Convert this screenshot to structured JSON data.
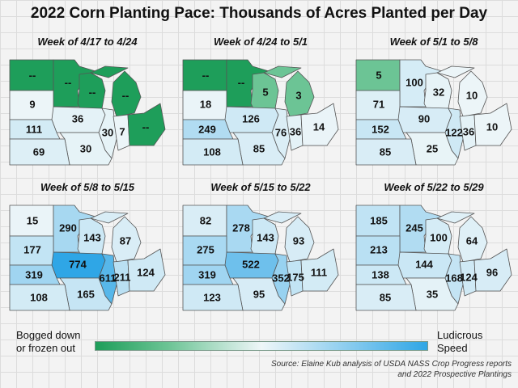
{
  "title": "2022 Corn Planting Pace: Thousands of Acres Planted per Day",
  "legend": {
    "low_label_line1": "Bogged down",
    "low_label_line2": "or frozen out",
    "high_label_line1": "Ludicrous",
    "high_label_line2": "Speed",
    "colors": [
      "#1e9e5a",
      "#6cc495",
      "#eef6f8",
      "#2fa6e6"
    ]
  },
  "source": {
    "line1": "Source: Elaine Kub analysis of USDA NASS Crop Progress reports",
    "line2": "and 2022 Prospective Plantings"
  },
  "state_order": [
    "ND",
    "MN",
    "WI",
    "MI",
    "SD",
    "IA",
    "IL",
    "IN",
    "OH",
    "NE",
    "MO",
    "KS"
  ],
  "weeks": [
    {
      "label": "Week of 4/17 to 4/24",
      "states": {
        "ND": {
          "value": "--",
          "level": "min"
        },
        "MN": {
          "value": "--",
          "level": "min"
        },
        "WI": {
          "value": "--",
          "level": "min"
        },
        "MI": {
          "value": "--",
          "level": "min"
        },
        "SD": {
          "value": "9",
          "level": 0.01
        },
        "IA": {
          "value": "36",
          "level": 0.05
        },
        "IL": {
          "value": "30",
          "level": 0.04
        },
        "IN": {
          "value": "7",
          "level": 0.01
        },
        "OH": {
          "value": "--",
          "level": "min"
        },
        "NE": {
          "value": "111",
          "level": 0.14
        },
        "MO": {
          "value": "30",
          "level": 0.04
        },
        "KS": {
          "value": "69",
          "level": 0.09
        }
      }
    },
    {
      "label": "Week of 4/24 to 5/1",
      "states": {
        "ND": {
          "value": "--",
          "level": "min"
        },
        "MN": {
          "value": "--",
          "level": "min"
        },
        "WI": {
          "value": "5",
          "level": "low"
        },
        "MI": {
          "value": "3",
          "level": "low"
        },
        "SD": {
          "value": "18",
          "level": 0.02
        },
        "IA": {
          "value": "126",
          "level": 0.16
        },
        "IL": {
          "value": "76",
          "level": 0.1
        },
        "IN": {
          "value": "36",
          "level": 0.05
        },
        "OH": {
          "value": "14",
          "level": 0.02
        },
        "NE": {
          "value": "249",
          "level": 0.32
        },
        "MO": {
          "value": "85",
          "level": 0.11
        },
        "KS": {
          "value": "108",
          "level": 0.14
        }
      }
    },
    {
      "label": "Week of 5/1 to 5/8",
      "states": {
        "ND": {
          "value": "5",
          "level": "low"
        },
        "MN": {
          "value": "100",
          "level": 0.13
        },
        "WI": {
          "value": "32",
          "level": 0.04
        },
        "MI": {
          "value": "10",
          "level": 0.01
        },
        "SD": {
          "value": "71",
          "level": 0.09
        },
        "IA": {
          "value": "90",
          "level": 0.12
        },
        "IL": {
          "value": "122",
          "level": 0.16
        },
        "IN": {
          "value": "36",
          "level": 0.05
        },
        "OH": {
          "value": "10",
          "level": 0.01
        },
        "NE": {
          "value": "152",
          "level": 0.2
        },
        "MO": {
          "value": "25",
          "level": 0.03
        },
        "KS": {
          "value": "85",
          "level": 0.11
        }
      }
    },
    {
      "label": "Week of 5/8 to 5/15",
      "states": {
        "ND": {
          "value": "15",
          "level": 0.02
        },
        "MN": {
          "value": "290",
          "level": 0.37
        },
        "WI": {
          "value": "143",
          "level": 0.18
        },
        "MI": {
          "value": "87",
          "level": 0.11
        },
        "SD": {
          "value": "177",
          "level": 0.23
        },
        "IA": {
          "value": "774",
          "level": 1.0
        },
        "IL": {
          "value": "611",
          "level": 0.79
        },
        "IN": {
          "value": "211",
          "level": 0.27
        },
        "OH": {
          "value": "124",
          "level": 0.16
        },
        "NE": {
          "value": "319",
          "level": 0.41
        },
        "MO": {
          "value": "165",
          "level": 0.21
        },
        "KS": {
          "value": "108",
          "level": 0.14
        }
      }
    },
    {
      "label": "Week of 5/15 to 5/22",
      "states": {
        "ND": {
          "value": "82",
          "level": 0.11
        },
        "MN": {
          "value": "278",
          "level": 0.36
        },
        "WI": {
          "value": "143",
          "level": 0.18
        },
        "MI": {
          "value": "93",
          "level": 0.12
        },
        "SD": {
          "value": "275",
          "level": 0.36
        },
        "IA": {
          "value": "522",
          "level": 0.67
        },
        "IL": {
          "value": "352",
          "level": 0.45
        },
        "IN": {
          "value": "175",
          "level": 0.23
        },
        "OH": {
          "value": "111",
          "level": 0.14
        },
        "NE": {
          "value": "319",
          "level": 0.41
        },
        "MO": {
          "value": "95",
          "level": 0.12
        },
        "KS": {
          "value": "123",
          "level": 0.16
        }
      }
    },
    {
      "label": "Week of 5/22 to 5/29",
      "states": {
        "ND": {
          "value": "185",
          "level": 0.24
        },
        "MN": {
          "value": "245",
          "level": 0.32
        },
        "WI": {
          "value": "100",
          "level": 0.13
        },
        "MI": {
          "value": "64",
          "level": 0.08
        },
        "SD": {
          "value": "213",
          "level": 0.28
        },
        "IA": {
          "value": "144",
          "level": 0.19
        },
        "IL": {
          "value": "168",
          "level": 0.22
        },
        "IN": {
          "value": "124",
          "level": 0.16
        },
        "OH": {
          "value": "96",
          "level": 0.12
        },
        "NE": {
          "value": "138",
          "level": 0.18
        },
        "MO": {
          "value": "35",
          "level": 0.05
        },
        "KS": {
          "value": "85",
          "level": 0.11
        }
      }
    }
  ]
}
